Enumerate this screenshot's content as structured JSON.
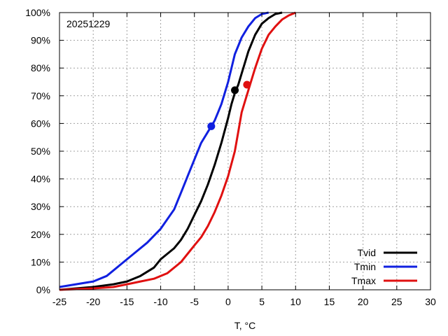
{
  "chart_data": {
    "type": "line",
    "annotation": "20251229",
    "xlabel": "T, °C",
    "ylabel": "",
    "xlim": [
      -25,
      30
    ],
    "ylim": [
      0,
      100
    ],
    "x_ticks": [
      -25,
      -20,
      -15,
      -10,
      -5,
      0,
      5,
      10,
      15,
      20,
      25,
      30
    ],
    "y_ticks": [
      0,
      10,
      20,
      30,
      40,
      50,
      60,
      70,
      80,
      90,
      100
    ],
    "y_tick_labels": [
      "0%",
      "10%",
      "20%",
      "30%",
      "40%",
      "50%",
      "60%",
      "70%",
      "80%",
      "90%",
      "100%"
    ],
    "x_tick_labels": [
      "-25",
      "-20",
      "-15",
      "-10",
      "-5",
      "0",
      "5",
      "10",
      "15",
      "20",
      "25",
      "30"
    ],
    "grid": true,
    "legend_position": "bottom-right",
    "series": [
      {
        "name": "Tvid",
        "color": "#000000",
        "x": [
          -25,
          -20,
          -17,
          -15,
          -13,
          -11,
          -10,
          -8,
          -7,
          -6,
          -5,
          -4,
          -3,
          -2,
          -1,
          0,
          0.5,
          1,
          1.5,
          2,
          2.5,
          3,
          4,
          5,
          6,
          7,
          8
        ],
        "y": [
          0,
          1,
          2,
          3,
          5,
          8,
          11,
          15,
          18,
          22,
          27,
          32,
          38,
          45,
          53,
          62,
          67,
          71,
          74,
          78,
          82,
          86,
          92,
          96,
          98,
          99.5,
          100
        ],
        "marker": {
          "x": 1,
          "y": 72
        }
      },
      {
        "name": "Tmin",
        "color": "#1020e0",
        "x": [
          -25,
          -20,
          -18,
          -16,
          -14,
          -12,
          -10,
          -8,
          -7,
          -6,
          -5,
          -4,
          -3,
          -2,
          -1.5,
          -1,
          0,
          0.5,
          1,
          1.5,
          2,
          3,
          4,
          5,
          6
        ],
        "y": [
          1,
          3,
          5,
          9,
          13,
          17,
          22,
          29,
          35,
          41,
          47,
          53,
          57,
          61,
          64,
          67,
          75,
          80,
          85,
          88,
          91,
          95,
          98,
          99.5,
          100
        ],
        "marker": {
          "x": -2.5,
          "y": 59
        }
      },
      {
        "name": "Tmax",
        "color": "#e01010",
        "x": [
          -25,
          -20,
          -17,
          -15,
          -13,
          -11,
          -9,
          -7,
          -6,
          -5,
          -4,
          -3,
          -2,
          -1,
          0,
          1,
          1.5,
          2,
          2.5,
          3,
          4,
          5,
          6,
          7,
          8,
          9,
          10
        ],
        "y": [
          0,
          0.5,
          1,
          2,
          3,
          4,
          6,
          10,
          13,
          16,
          19,
          23,
          28,
          34,
          41,
          50,
          57,
          64,
          68,
          72,
          80,
          87,
          92,
          95,
          97.5,
          99,
          100
        ],
        "marker": {
          "x": 2.8,
          "y": 74
        }
      }
    ]
  }
}
